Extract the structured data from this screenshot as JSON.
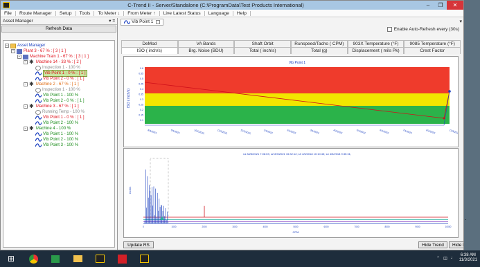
{
  "window": {
    "title": "C-Trend II - Server/Standalone (C:\\ProgramData\\Test Products International)"
  },
  "menu": [
    "File",
    "Route Manager",
    "Setup",
    "Tools",
    "To Meter ↓",
    "From Meter ↑",
    "Live Latest Status",
    "Language",
    "Help"
  ],
  "left": {
    "header": "Asset Manager",
    "pin": "▾ ⌗",
    "refresh": "Refresh Data"
  },
  "tree": [
    {
      "d": 0,
      "t": "Asset Manager",
      "c": "blue",
      "i": "folder",
      "g": "−"
    },
    {
      "d": 1,
      "t": "Plant 3 - 67 % : [ 3 | 1 ]",
      "c": "red",
      "i": "plant",
      "g": "−"
    },
    {
      "d": 2,
      "t": "Machine Train 1 - 67 % : [ 3 | 1 ]",
      "c": "red",
      "i": "plant",
      "g": "−"
    },
    {
      "d": 3,
      "t": "Machine 14 - 33 % : [ 2 ]",
      "c": "red",
      "i": "mach",
      "g": "−"
    },
    {
      "d": 4,
      "t": "Inspection 1 - 100 %",
      "c": "gray",
      "i": "insp"
    },
    {
      "d": 4,
      "t": "Vib Point 1 - 0 % : [ 1 ]",
      "c": "red",
      "i": "wave",
      "sel": true
    },
    {
      "d": 4,
      "t": "Vib Point 2 - 0 % : [ 1 ]",
      "c": "red",
      "i": "wave"
    },
    {
      "d": 3,
      "t": "Machine 2 - 67 % : [ 1 ]",
      "c": "orange",
      "i": "mach",
      "g": "−"
    },
    {
      "d": 4,
      "t": "Inspection 1 - 100 %",
      "c": "gray",
      "i": "insp"
    },
    {
      "d": 4,
      "t": "Vib Point 1 - 100 %",
      "c": "green",
      "i": "wave"
    },
    {
      "d": 4,
      "t": "Vib Point 2 - 0 % : [ 1 ]",
      "c": "green",
      "i": "wave"
    },
    {
      "d": 3,
      "t": "Machine 3 - 67 % : [ 1 ]",
      "c": "red",
      "i": "mach",
      "g": "−"
    },
    {
      "d": 4,
      "t": "Running Temp - 100 %",
      "c": "gray",
      "i": "insp"
    },
    {
      "d": 4,
      "t": "Vib Point 1 - 0 % : [ 1 ]",
      "c": "red",
      "i": "wave"
    },
    {
      "d": 4,
      "t": "Vib Point 2 - 100 %",
      "c": "green",
      "i": "wave"
    },
    {
      "d": 3,
      "t": "Machine 4 - 100 %",
      "c": "green",
      "i": "mach",
      "g": "−"
    },
    {
      "d": 4,
      "t": "Vib Point 1 - 100 %",
      "c": "green",
      "i": "wave"
    },
    {
      "d": 4,
      "t": "Vib Point 2 - 100 %",
      "c": "green",
      "i": "wave"
    },
    {
      "d": 4,
      "t": "Vib Point 3 - 100 %",
      "c": "green",
      "i": "wave"
    }
  ],
  "doc_tab": "Vib Point 1",
  "auto_refresh": "Enable Auto-Refresh every (30s)",
  "tabs_row1": [
    "DeMod",
    "VA Bands",
    "Shaft Orbit",
    "Runspeed/Tacho ( CPM)",
    "903X Temperature  (°F)",
    "9085 Temperature  (°F)"
  ],
  "tabs_row2": [
    "ISO ( inch/s)",
    "Brg. Noise (BDU)",
    "Total ( inch/s)",
    "Total (g)",
    "Displacement ( mils Pk)",
    "Crest Factor"
  ],
  "trend": {
    "title": "Vib Point 1",
    "ylabel": "ISO ( inch/s)",
    "yticks": [
      "0.6",
      "0.55",
      "0.5",
      "0.45",
      "0.4",
      "0.35",
      "0.3",
      "0.25",
      "0.2",
      "0.15",
      "0.1"
    ],
    "xticks": [
      "8/3/2021",
      "9/1/2021",
      "10/1/2021",
      "11/1/2021",
      "12/1/2021",
      "1/1/2022",
      "2/1/2022",
      "3/1/2022",
      "4/1/2022",
      "5/1/2022",
      "6/1/2022",
      "7/1/2022",
      "8/1/2022",
      "11/3/2021"
    ]
  },
  "fft": {
    "legend": "s1 8/25/2021 7:08:03;  s2 8/3/2021 15:32:12;  s3 4/5/2018 10:10:45;  s4 4/5/2018 9:35:31;",
    "ylabel": "inch/s",
    "xlabel": "CPM",
    "xticks": [
      "0",
      "1000",
      "2000",
      "3000",
      "4000",
      "5000",
      "6000",
      "7000",
      "8000",
      "9000",
      "10000"
    ]
  },
  "buttons": {
    "update": "Update RS",
    "hide_trend": "Hide Trend",
    "hide_fft": "Hide FFT"
  },
  "clock": {
    "time": "6:38 AM",
    "date": "11/3/2021"
  },
  "side_text": "."
}
